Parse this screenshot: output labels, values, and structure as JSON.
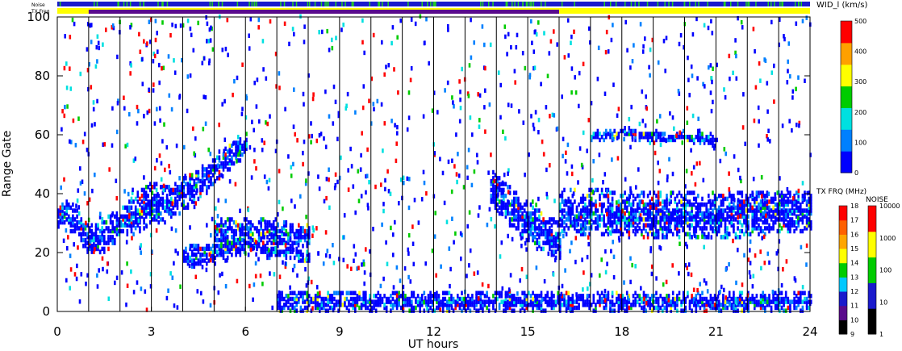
{
  "chart_data": {
    "type": "heatmap",
    "xlabel": "UT hours",
    "ylabel": "Range Gate",
    "xlim": [
      0,
      24
    ],
    "ylim": [
      0,
      100
    ],
    "xticks": [
      "0",
      "3",
      "6",
      "9",
      "12",
      "15",
      "18",
      "21",
      "24"
    ],
    "yticks": [
      "0",
      "20",
      "40",
      "60",
      "80",
      "100"
    ],
    "hour_gridlines": [
      1,
      2,
      3,
      4,
      5,
      6,
      7,
      8,
      9,
      10,
      11,
      12,
      13,
      14,
      15,
      16,
      17,
      18,
      19,
      20,
      21,
      22,
      23
    ],
    "top_bars": {
      "noise_label": "Noise",
      "txfreq_label": "TX Freq",
      "noise_color": "#1a1acc",
      "noise_accent_color": "#22cc22",
      "txfreq_base_color": "#ffff00",
      "txfreq_dark_color": "#5a0a8c",
      "txfreq_dark_range": [
        1,
        16
      ]
    },
    "colorbars": {
      "width": {
        "title": "WID_l (km/s)",
        "ticks": [
          "0",
          "100",
          "200",
          "300",
          "400",
          "500"
        ],
        "colors": [
          "#0000ff",
          "#0080ff",
          "#00e0e0",
          "#00cc00",
          "#ffff00",
          "#ffa000",
          "#ff0000"
        ]
      },
      "txfreq": {
        "title": "TX FRQ (MHz)",
        "ticks": [
          "9",
          "10",
          "11",
          "12",
          "13",
          "14",
          "15",
          "16",
          "17",
          "18"
        ],
        "colors": [
          "#000000",
          "#5a0a8c",
          "#1a1acc",
          "#00c8ff",
          "#00cc00",
          "#ffff00",
          "#ffa500",
          "#ff6000",
          "#ff0000"
        ]
      },
      "noise": {
        "title": "NOISE",
        "ticks": [
          "1",
          "10",
          "100",
          "1000",
          "10000"
        ],
        "colors": [
          "#000000",
          "#1a1acc",
          "#00cc00",
          "#ffff00",
          "#ff0000"
        ]
      }
    },
    "series": [
      {
        "band": "main-echo",
        "x": [
          0,
          0.5,
          1,
          1.5,
          2,
          2.5,
          3,
          3.5,
          4,
          4.5,
          5,
          5.5,
          6
        ],
        "y": [
          34,
          31,
          24,
          25,
          30,
          33,
          37,
          36,
          40,
          43,
          48,
          53,
          57
        ],
        "half_width": [
          4,
          4,
          4,
          5,
          5,
          6,
          6,
          6,
          5,
          5,
          4,
          4,
          3
        ]
      },
      {
        "band": "lower-echo",
        "x": [
          4,
          5,
          6,
          7,
          8
        ],
        "y": [
          18,
          20,
          22,
          20,
          19
        ],
        "half_width": [
          3,
          3,
          2,
          2,
          2
        ]
      },
      {
        "band": "middle-echo",
        "x": [
          5,
          6,
          7,
          8
        ],
        "y": [
          27,
          27,
          26,
          25
        ],
        "half_width": [
          4,
          4,
          4,
          3
        ]
      },
      {
        "band": "dayside-descending",
        "x": [
          13.8,
          14.5,
          15.2,
          16
        ],
        "y": [
          42,
          34,
          28,
          24
        ],
        "half_width": [
          5,
          6,
          6,
          6
        ]
      },
      {
        "band": "dayside-main",
        "x": [
          16,
          18,
          20,
          22,
          24
        ],
        "y": [
          34,
          33,
          32,
          33,
          34
        ],
        "half_width": [
          7,
          7,
          7,
          7,
          6
        ]
      },
      {
        "band": "upper-echo",
        "x": [
          17,
          18,
          19,
          20,
          21
        ],
        "y": [
          59,
          60,
          59,
          59,
          58
        ],
        "half_width": [
          1.5,
          1.5,
          1.5,
          1.5,
          1.5
        ]
      },
      {
        "band": "near-range",
        "x": [
          7,
          12,
          16,
          20,
          24
        ],
        "y": [
          3,
          3,
          3,
          3,
          3
        ],
        "half_width": [
          3,
          3,
          3,
          3,
          3
        ]
      }
    ]
  }
}
